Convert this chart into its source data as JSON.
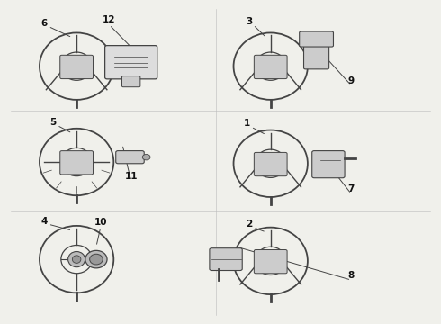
{
  "background_color": "#f0f0eb",
  "fig_width": 4.9,
  "fig_height": 3.6,
  "dpi": 100,
  "line_color": "#444444",
  "text_color": "#111111",
  "font_size": 7.5
}
